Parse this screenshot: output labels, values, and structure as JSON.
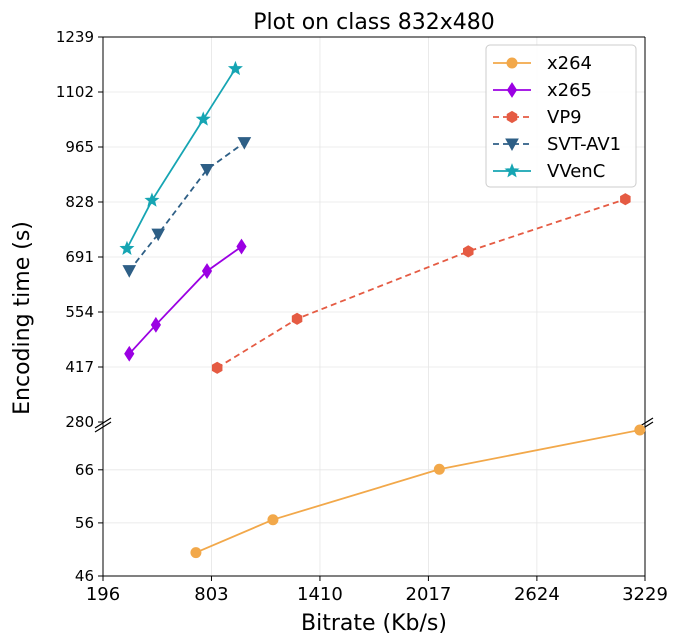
{
  "chart_data": {
    "type": "line",
    "title": "Plot on class 832x480",
    "xlabel": "Bitrate (Kb/s)",
    "ylabel": "Encoding time (s)",
    "xlim": [
      196,
      3229
    ],
    "x_ticks": [
      "196",
      "803",
      "1410",
      "2017",
      "2624",
      "3229"
    ],
    "broken_axis": true,
    "upper_panel": {
      "ylim": [
        280,
        1239
      ],
      "y_ticks": [
        "280",
        "417",
        "554",
        "691",
        "828",
        "965",
        "1102",
        "1239"
      ]
    },
    "lower_panel": {
      "ylim": [
        46,
        75
      ],
      "y_ticks": [
        "46",
        "56",
        "66"
      ]
    },
    "grid": true,
    "legend_position": "top-right",
    "series": [
      {
        "name": "x264",
        "panel": "lower",
        "color": "#f2a84a",
        "marker": "circle",
        "dash": "solid",
        "x": [
          716,
          1147,
          2078,
          3200
        ],
        "y": [
          50.4,
          56.6,
          66.1,
          73.5
        ]
      },
      {
        "name": "x265",
        "panel": "upper",
        "color": "#9b00e3",
        "marker": "diamond",
        "dash": "solid",
        "x": [
          343,
          492,
          778,
          971
        ],
        "y": [
          450,
          522,
          656,
          717
        ]
      },
      {
        "name": "VP9",
        "panel": "upper",
        "color": "#e55b43",
        "marker": "hexagon",
        "dash": "dashed",
        "x": [
          835,
          1282,
          2240,
          3119
        ],
        "y": [
          415,
          537,
          705,
          835
        ]
      },
      {
        "name": "SVT-AV1",
        "panel": "upper",
        "color": "#2e5f86",
        "marker": "triangle-down",
        "dash": "dashed",
        "x": [
          343,
          505,
          778,
          987
        ],
        "y": [
          657,
          748,
          909,
          976
        ]
      },
      {
        "name": "VVenC",
        "panel": "upper",
        "color": "#16a5b3",
        "marker": "star",
        "dash": "solid",
        "x": [
          330,
          470,
          757,
          937
        ],
        "y": [
          712,
          832,
          1034,
          1160
        ]
      }
    ]
  }
}
